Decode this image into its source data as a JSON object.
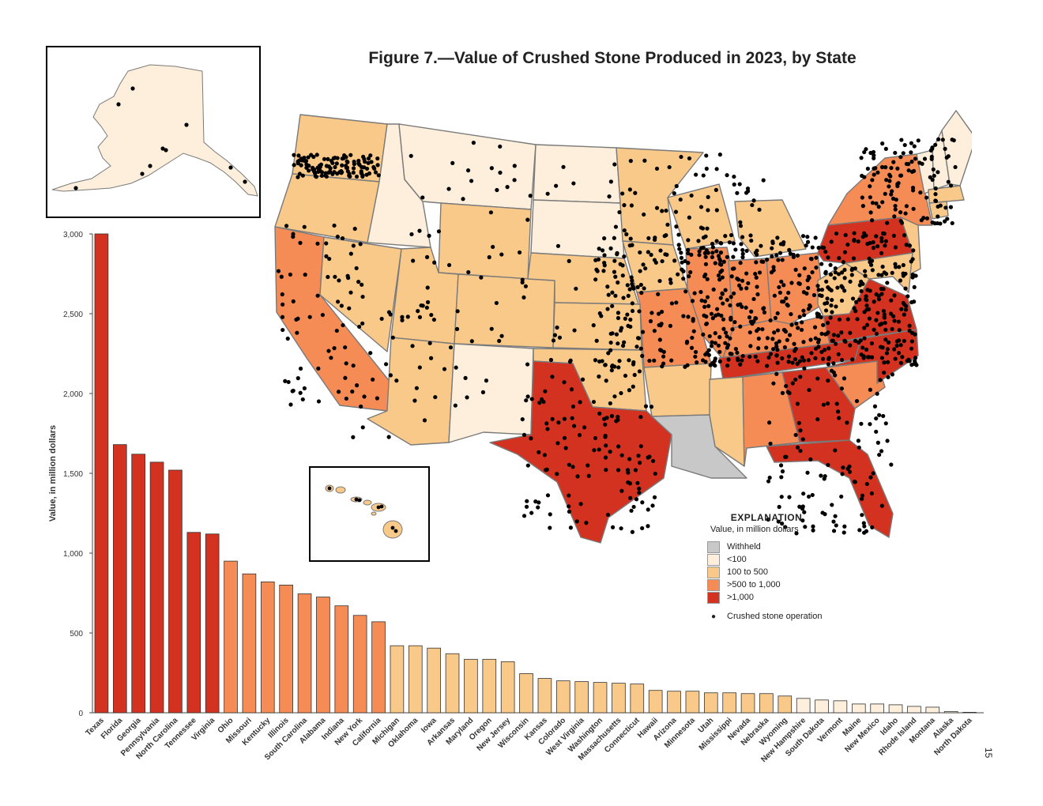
{
  "title": "Figure 7.—Value of Crushed Stone Produced in 2023, by State",
  "page_number": "15",
  "legend": {
    "title": "EXPLANATION",
    "subtitle": "Value, in million dollars",
    "items": [
      {
        "label": "Withheld",
        "color": "#c8c8c8"
      },
      {
        "label": "<100",
        "color": "#fdefdb"
      },
      {
        "label": "100 to 500",
        "color": "#f9c98a"
      },
      {
        "label": ">500 to 1,000",
        "color": "#f58c56"
      },
      {
        "label": ">1,000",
        "color": "#d2321f"
      }
    ],
    "operation_label": "Crushed stone operation"
  },
  "colors": {
    "withheld": "#c8c8c8",
    "lt100": "#fdefdb",
    "r100_500": "#f9c98a",
    "r500_1000": "#f58c56",
    "gt1000": "#d2321f",
    "border": "#7a7a7a"
  },
  "chart_data": {
    "type": "bar",
    "ylabel": "Value, in million dollars",
    "ylim": [
      0,
      3000
    ],
    "yticks": [
      0,
      500,
      1000,
      1500,
      2000,
      2500,
      3000
    ],
    "ytick_labels": [
      "0",
      "500",
      "1,000",
      "1,500",
      "2,000",
      "2,500",
      "3,000"
    ],
    "grid": false,
    "categories": [
      "Texas",
      "Florida",
      "Georgia",
      "Pennsylvania",
      "North Carolina",
      "Tennessee",
      "Virginia",
      "Ohio",
      "Missouri",
      "Kentucky",
      "Illinois",
      "South Carolina",
      "Alabama",
      "Indiana",
      "New York",
      "California",
      "Michigan",
      "Oklahoma",
      "Iowa",
      "Arkansas",
      "Maryland",
      "Oregon",
      "New Jersey",
      "Wisconsin",
      "Kansas",
      "Colorado",
      "West Virginia",
      "Washington",
      "Massachusetts",
      "Connecticut",
      "Hawaii",
      "Arizona",
      "Minnesota",
      "Utah",
      "Mississippi",
      "Nevada",
      "Nebraska",
      "Wyoming",
      "New Hampshire",
      "South Dakota",
      "Vermont",
      "Maine",
      "New Mexico",
      "Idaho",
      "Rhode Island",
      "Montana",
      "Alaska",
      "North Dakota"
    ],
    "values": [
      3000,
      1680,
      1620,
      1570,
      1520,
      1130,
      1120,
      950,
      870,
      820,
      800,
      745,
      725,
      670,
      610,
      570,
      420,
      420,
      405,
      370,
      335,
      335,
      320,
      245,
      215,
      200,
      195,
      190,
      185,
      180,
      140,
      135,
      135,
      125,
      125,
      120,
      120,
      105,
      90,
      80,
      75,
      55,
      55,
      50,
      40,
      35,
      8,
      3
    ]
  }
}
